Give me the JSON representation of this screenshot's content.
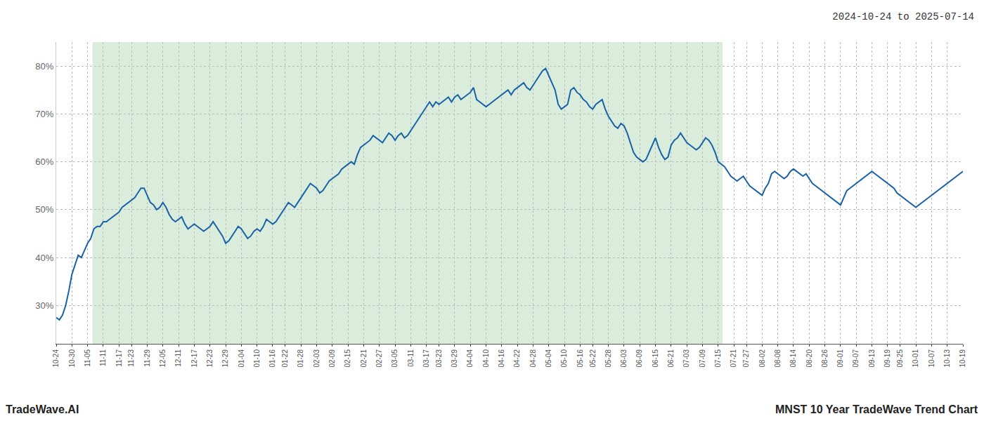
{
  "chart_data": {
    "type": "line",
    "title": "2024-10-24 to 2025-07-14",
    "annotations": [
      "TradeWave.AI",
      "MNST 10 Year TradeWave Trend Chart"
    ],
    "color": "#1a62a8",
    "grid": true,
    "ylim": [
      22,
      85
    ],
    "yticks": [
      {
        "value": 30,
        "label": "30%"
      },
      {
        "value": 40,
        "label": "40%"
      },
      {
        "value": 50,
        "label": "50%"
      },
      {
        "value": 60,
        "label": "60%"
      },
      {
        "value": 70,
        "label": "70%"
      },
      {
        "value": 80,
        "label": "80%"
      }
    ],
    "categories": [
      "10-24",
      null,
      null,
      null,
      null,
      "10-30",
      null,
      null,
      null,
      null,
      "11-05",
      null,
      null,
      null,
      null,
      "11-11",
      null,
      null,
      null,
      null,
      "11-17",
      null,
      null,
      null,
      "11-23",
      null,
      null,
      null,
      null,
      "11-29",
      null,
      null,
      null,
      null,
      "12-05",
      null,
      null,
      null,
      null,
      "12-11",
      null,
      null,
      null,
      null,
      "12-17",
      null,
      null,
      null,
      null,
      "12-23",
      null,
      null,
      null,
      null,
      "12-29",
      null,
      null,
      null,
      null,
      "01-04",
      null,
      null,
      null,
      null,
      "01-10",
      null,
      null,
      null,
      null,
      "01-16",
      null,
      null,
      null,
      "01-22",
      null,
      null,
      null,
      null,
      "01-28",
      null,
      null,
      null,
      null,
      "02-03",
      null,
      null,
      null,
      null,
      "02-09",
      null,
      null,
      null,
      null,
      "02-15",
      null,
      null,
      null,
      null,
      "02-21",
      null,
      null,
      null,
      null,
      "02-27",
      null,
      null,
      null,
      null,
      "03-05",
      null,
      null,
      null,
      null,
      "03-11",
      null,
      null,
      null,
      null,
      "03-17",
      null,
      null,
      null,
      "03-23",
      null,
      null,
      null,
      null,
      "03-29",
      null,
      null,
      null,
      null,
      "04-04",
      null,
      null,
      null,
      null,
      "04-10",
      null,
      null,
      null,
      null,
      "04-16",
      null,
      null,
      null,
      null,
      "04-22",
      null,
      null,
      null,
      null,
      "04-28",
      null,
      null,
      null,
      null,
      "05-04",
      null,
      null,
      null,
      null,
      "05-10",
      null,
      null,
      null,
      null,
      "05-16",
      null,
      null,
      null,
      "05-22",
      null,
      null,
      null,
      null,
      "05-28",
      null,
      null,
      null,
      null,
      "06-03",
      null,
      null,
      null,
      null,
      "06-09",
      null,
      null,
      null,
      null,
      "06-15",
      null,
      null,
      null,
      null,
      "06-21",
      null,
      null,
      null,
      null,
      "07-03",
      null,
      null,
      null,
      null,
      "07-09",
      null,
      null,
      null,
      null,
      "07-15",
      null,
      null,
      null,
      null,
      "07-21",
      null,
      null,
      null,
      "07-27",
      null,
      null,
      null,
      null,
      "08-02",
      null,
      null,
      null,
      null,
      "08-08",
      null,
      null,
      null,
      null,
      "08-14",
      null,
      null,
      null,
      null,
      "08-20",
      null,
      null,
      null,
      null,
      "08-26",
      null,
      null,
      null,
      null,
      "09-01",
      null,
      null,
      null,
      null,
      "09-07",
      null,
      null,
      null,
      null,
      "09-13",
      null,
      null,
      null,
      null,
      "09-19",
      null,
      null,
      null,
      "09-25",
      null,
      null,
      null,
      null,
      "10-01",
      null,
      null,
      null,
      null,
      "10-07",
      null,
      null,
      null,
      null,
      "10-13",
      null,
      null,
      null,
      null,
      "10-19"
    ],
    "values": [
      27.5,
      27.0,
      28.0,
      30.0,
      33.0,
      36.5,
      38.5,
      40.5,
      40.0,
      41.5,
      43.0,
      44.0,
      46.0,
      46.5,
      46.5,
      47.5,
      47.5,
      48.0,
      48.5,
      49.0,
      49.5,
      50.5,
      51.0,
      51.5,
      52.0,
      52.5,
      53.5,
      54.5,
      54.5,
      53.0,
      51.5,
      51.0,
      50.0,
      50.5,
      51.5,
      50.5,
      49.0,
      48.0,
      47.5,
      48.0,
      48.5,
      47.0,
      46.0,
      46.5,
      47.0,
      46.5,
      46.0,
      45.5,
      46.0,
      46.5,
      47.5,
      46.5,
      45.5,
      44.5,
      43.0,
      43.5,
      44.5,
      45.5,
      46.5,
      46.0,
      45.0,
      44.0,
      44.5,
      45.5,
      46.0,
      45.5,
      46.5,
      48.0,
      47.5,
      47.0,
      47.5,
      48.5,
      49.5,
      50.5,
      51.5,
      51.0,
      50.5,
      51.5,
      52.5,
      53.5,
      54.5,
      55.5,
      55.0,
      54.5,
      53.5,
      54.0,
      55.0,
      56.0,
      56.5,
      57.0,
      57.5,
      58.5,
      59.0,
      59.5,
      60.0,
      59.5,
      61.5,
      63.0,
      63.5,
      64.0,
      64.5,
      65.5,
      65.0,
      64.5,
      64.0,
      65.0,
      66.0,
      65.5,
      64.5,
      65.5,
      66.0,
      65.0,
      65.5,
      66.5,
      67.5,
      68.5,
      69.5,
      70.5,
      71.5,
      72.5,
      71.5,
      72.5,
      72.0,
      72.5,
      73.0,
      73.5,
      72.5,
      73.5,
      74.0,
      73.0,
      73.5,
      74.0,
      74.5,
      75.5,
      73.0,
      72.5,
      72.0,
      71.5,
      72.0,
      72.5,
      73.0,
      73.5,
      74.0,
      74.5,
      75.0,
      74.0,
      75.0,
      75.5,
      76.0,
      76.5,
      75.5,
      75.0,
      76.0,
      77.0,
      78.0,
      79.0,
      79.5,
      78.0,
      76.5,
      75.0,
      72.0,
      71.0,
      71.5,
      72.0,
      75.0,
      75.5,
      74.5,
      74.0,
      73.0,
      72.5,
      71.5,
      71.0,
      72.0,
      72.5,
      73.0,
      71.0,
      69.5,
      68.5,
      67.5,
      67.0,
      68.0,
      67.5,
      66.0,
      64.0,
      62.0,
      61.0,
      60.5,
      60.0,
      60.5,
      62.0,
      63.5,
      65.0,
      63.0,
      61.5,
      60.5,
      61.0,
      63.5,
      64.5,
      65.0,
      66.0,
      65.0,
      64.0,
      63.5,
      63.0,
      62.5,
      63.0,
      64.0,
      65.0,
      64.5,
      63.5,
      62.0,
      60.0,
      59.5,
      59.0,
      58.0,
      57.0,
      56.5,
      56.0,
      56.5,
      57.0,
      56.0,
      55.0,
      54.5,
      54.0,
      53.5,
      53.0,
      54.5,
      55.5,
      57.5,
      58.0,
      57.5,
      57.0,
      56.5,
      57.0,
      58.0,
      58.5,
      58.0,
      57.5,
      57.0,
      57.5,
      56.5,
      55.5,
      55.0,
      54.5,
      54.0,
      53.5,
      53.0,
      52.5,
      52.0,
      51.5,
      51.0,
      52.5,
      54.0,
      54.5,
      55.0,
      55.5,
      56.0,
      56.5,
      57.0,
      57.5,
      58.0,
      57.5,
      57.0,
      56.5,
      56.0,
      55.5,
      55.0,
      54.5,
      53.5,
      53.0,
      52.5,
      52.0,
      51.5,
      51.0,
      50.5,
      51.0,
      51.5,
      52.0,
      52.5,
      53.0,
      53.5,
      54.0,
      54.5,
      55.0,
      55.5,
      56.0,
      56.5,
      57.0,
      57.5,
      58.0
    ]
  }
}
